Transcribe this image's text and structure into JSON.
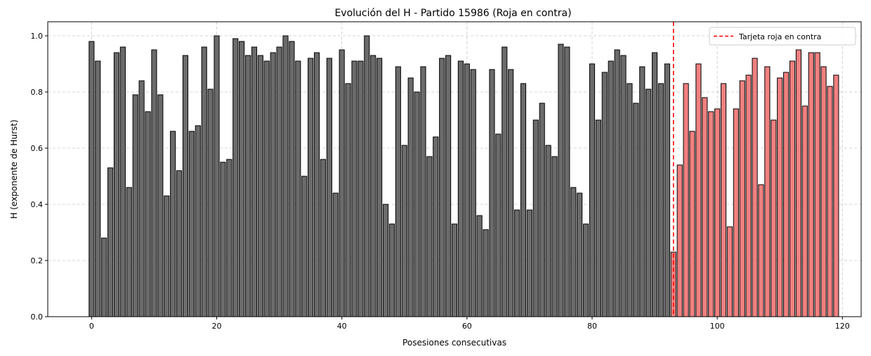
{
  "chart_data": {
    "type": "bar",
    "title": "Evolución del H - Partido 15986 (Roja en contra)",
    "xlabel": "Posesiones consecutivas",
    "ylabel": "H (exponente de Hurst)",
    "xlim": [
      -7,
      123
    ],
    "ylim": [
      0,
      1.05
    ],
    "xticks": [
      0,
      20,
      40,
      60,
      80,
      100,
      120
    ],
    "yticks": [
      0.0,
      0.2,
      0.4,
      0.6,
      0.8,
      1.0
    ],
    "xtick_labels": [
      "0",
      "20",
      "40",
      "60",
      "80",
      "100",
      "120"
    ],
    "ytick_labels": [
      "0.0",
      "0.2",
      "0.4",
      "0.6",
      "0.8",
      "1.0"
    ],
    "grid": true,
    "legend_position": "top-right",
    "event": {
      "x": 93,
      "label": "Tarjeta roja en contra",
      "color": "#ff0000"
    },
    "colors": {
      "before": "#6b6b6b",
      "after": "#f08080",
      "edge": "#000000"
    },
    "x": [
      0,
      1,
      2,
      3,
      4,
      5,
      6,
      7,
      8,
      9,
      10,
      11,
      12,
      13,
      14,
      15,
      16,
      17,
      18,
      19,
      20,
      21,
      22,
      23,
      24,
      25,
      26,
      27,
      28,
      29,
      30,
      31,
      32,
      33,
      34,
      35,
      36,
      37,
      38,
      39,
      40,
      41,
      42,
      43,
      44,
      45,
      46,
      47,
      48,
      49,
      50,
      51,
      52,
      53,
      54,
      55,
      56,
      57,
      58,
      59,
      60,
      61,
      62,
      63,
      64,
      65,
      66,
      67,
      68,
      69,
      70,
      71,
      72,
      73,
      74,
      75,
      76,
      77,
      78,
      79,
      80,
      81,
      82,
      83,
      84,
      85,
      86,
      87,
      88,
      89,
      90,
      91,
      92,
      93,
      94,
      95,
      96,
      97,
      98,
      99,
      100,
      101,
      102,
      103,
      104,
      105,
      106,
      107,
      108,
      109,
      110,
      111,
      112,
      113,
      114,
      115,
      116,
      117,
      118,
      119
    ],
    "values": [
      0.98,
      0.91,
      0.28,
      0.53,
      0.94,
      0.96,
      0.46,
      0.79,
      0.84,
      0.73,
      0.95,
      0.79,
      0.43,
      0.66,
      0.52,
      0.93,
      0.66,
      0.68,
      0.96,
      0.81,
      1.0,
      0.55,
      0.56,
      0.99,
      0.98,
      0.93,
      0.96,
      0.93,
      0.91,
      0.94,
      0.96,
      1.0,
      0.98,
      0.91,
      0.5,
      0.92,
      0.94,
      0.56,
      0.92,
      0.44,
      0.95,
      0.83,
      0.91,
      0.91,
      1.0,
      0.93,
      0.92,
      0.4,
      0.33,
      0.89,
      0.61,
      0.85,
      0.8,
      0.89,
      0.57,
      0.64,
      0.92,
      0.93,
      0.33,
      0.91,
      0.9,
      0.88,
      0.36,
      0.31,
      0.88,
      0.65,
      0.96,
      0.88,
      0.38,
      0.83,
      0.38,
      0.7,
      0.76,
      0.61,
      0.57,
      0.97,
      0.96,
      0.46,
      0.44,
      0.33,
      0.9,
      0.7,
      0.87,
      0.91,
      0.95,
      0.93,
      0.83,
      0.76,
      0.89,
      0.81,
      0.94,
      0.83,
      0.9,
      0.23,
      0.54,
      0.83,
      0.66,
      0.9,
      0.78,
      0.73,
      0.74,
      0.83,
      0.32,
      0.74,
      0.84,
      0.86,
      0.92,
      0.47,
      0.89,
      0.7,
      0.85,
      0.87,
      0.91,
      0.95,
      0.75,
      0.94,
      0.94,
      0.89,
      0.82,
      0.86
    ]
  }
}
